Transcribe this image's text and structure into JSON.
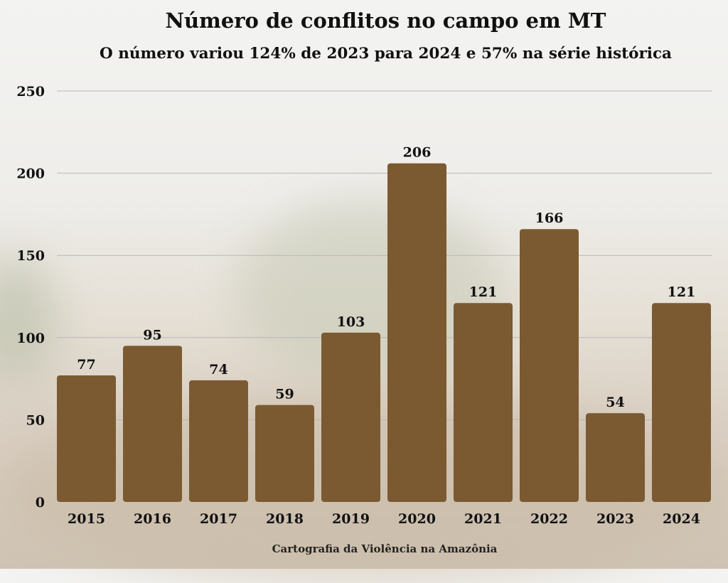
{
  "chart_data": {
    "type": "bar",
    "title": "Número de conflitos no campo em MT",
    "subtitle": "O número variou 124% de 2023 para 2024 e 57% na série histórica",
    "source": "Cartografia da Violência na Amazônia",
    "categories": [
      "2015",
      "2016",
      "2017",
      "2018",
      "2019",
      "2020",
      "2021",
      "2022",
      "2023",
      "2024"
    ],
    "values": [
      77,
      95,
      74,
      59,
      103,
      206,
      121,
      166,
      54,
      121
    ],
    "ylim": [
      0,
      250
    ],
    "yticks": [
      0,
      50,
      100,
      150,
      200,
      250
    ],
    "grid": true,
    "bar_color": "#7b5a32",
    "data_labels": true
  }
}
